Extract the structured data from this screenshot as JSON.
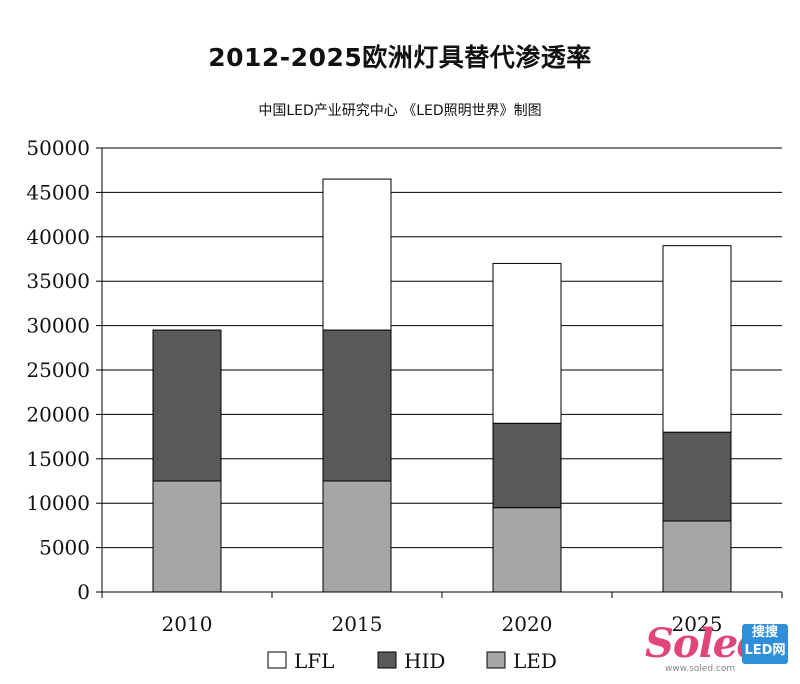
{
  "chart_data": {
    "type": "bar",
    "stacked": true,
    "title": "2012-2025欧洲灯具替代渗透率",
    "subtitle": "中国LED产业研究中心  《LED照明世界》制图",
    "categories": [
      "2010",
      "2015",
      "2020",
      "2025"
    ],
    "series": [
      {
        "name": "LED",
        "color": "#a6a6a6",
        "values": [
          12500,
          12500,
          9500,
          8000
        ]
      },
      {
        "name": "HID",
        "color": "#595959",
        "values": [
          17000,
          17000,
          9500,
          10000
        ]
      },
      {
        "name": "LFL",
        "color": "#ffffff",
        "values": [
          0,
          17000,
          18000,
          21000
        ]
      }
    ],
    "legend_order": [
      "LFL",
      "HID",
      "LED"
    ],
    "ylim": [
      0,
      50000
    ],
    "ytick_step": 5000,
    "yticks": [
      "0",
      "5000",
      "10000",
      "15000",
      "20000",
      "25000",
      "30000",
      "35000",
      "40000",
      "45000",
      "50000"
    ],
    "grid": true,
    "legend_position": "bottom",
    "xlabel": "",
    "ylabel": ""
  },
  "watermark": {
    "logo": "Soled",
    "badge_line1": "搜搜",
    "badge_line2": "LED网",
    "site": "www.soled.com"
  }
}
